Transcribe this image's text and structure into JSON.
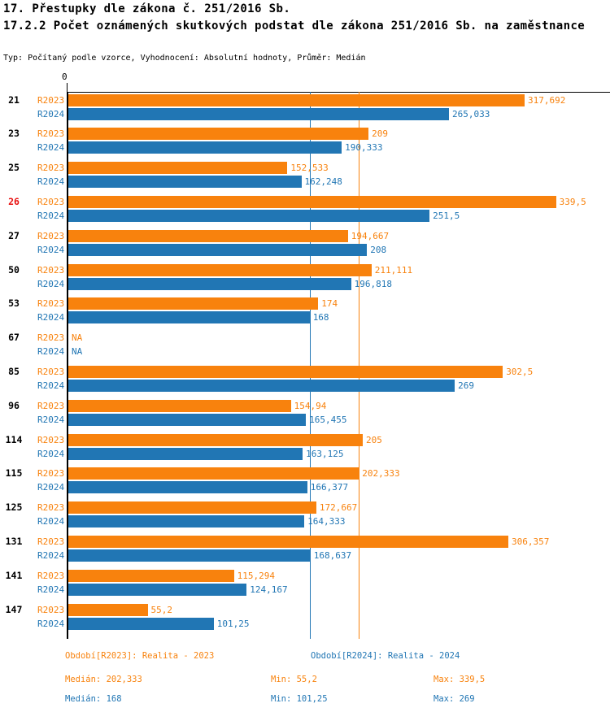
{
  "header": {
    "title_line1": "17. Přestupky dle zákona č. 251/2016 Sb.",
    "title_line2": "17.2.2 Počet oznámených skutkových podstat dle zákona 251/2016 Sb. na zaměstnance",
    "subtitle": "Typ: Počítaný podle vzorce, Vyhodnocení: Absolutní hodnoty, Průměr: Medián"
  },
  "colors": {
    "r2023": "#F8820D",
    "r2024": "#2176B4",
    "highlight_category": "#E81010",
    "axis": "#000000"
  },
  "chart_data": {
    "type": "bar",
    "orientation": "horizontal",
    "title": "17.2.2 Počet oznámených skutkových podstat dle zákona 251/2016 Sb. na zaměstnance",
    "x_axis": {
      "zero_label": "0",
      "xlim": [
        0,
        377
      ],
      "gridlines": false
    },
    "categories": [
      "21",
      "23",
      "25",
      "26",
      "27",
      "50",
      "53",
      "67",
      "85",
      "96",
      "114",
      "115",
      "125",
      "131",
      "141",
      "147"
    ],
    "highlighted_category": "26",
    "series": [
      {
        "name": "R2023",
        "color": "#F8820D",
        "values": [
          317.692,
          209,
          152.533,
          339.5,
          194.667,
          211.111,
          174,
          null,
          302.5,
          154.94,
          205,
          202.333,
          172.667,
          306.357,
          115.294,
          55.2
        ],
        "value_labels": [
          "317,692",
          "209",
          "152,533",
          "339,5",
          "194,667",
          "211,111",
          "174",
          "NA",
          "302,5",
          "154,94",
          "205",
          "202,333",
          "172,667",
          "306,357",
          "115,294",
          "55,2"
        ],
        "median": 202.333,
        "min": 55.2,
        "max": 339.5
      },
      {
        "name": "R2024",
        "color": "#2176B4",
        "values": [
          265.033,
          190.333,
          162.248,
          251.5,
          208,
          196.818,
          168,
          null,
          269,
          165.455,
          163.125,
          166.377,
          164.333,
          168.637,
          124.167,
          101.25
        ],
        "value_labels": [
          "265,033",
          "190,333",
          "162,248",
          "251,5",
          "208",
          "196,818",
          "168",
          "NA",
          "269",
          "165,455",
          "163,125",
          "166,377",
          "164,333",
          "168,637",
          "124,167",
          "101,25"
        ],
        "median": 168,
        "min": 101.25,
        "max": 269
      }
    ],
    "reference_lines": [
      {
        "series": "R2023",
        "type": "median",
        "value": 202.333,
        "color": "#F8820D"
      },
      {
        "series": "R2024",
        "type": "median",
        "value": 168,
        "color": "#2176B4"
      }
    ]
  },
  "legend": {
    "r2023": "Období[R2023]: Realita - 2023",
    "r2024": "Období[R2024]: Realita - 2024"
  },
  "stats": {
    "r2023": {
      "median": "Medián: 202,333",
      "min": "Min: 55,2",
      "max": "Max: 339,5"
    },
    "r2024": {
      "median": "Medián: 168",
      "min": "Min: 101,25",
      "max": "Max: 269"
    }
  }
}
